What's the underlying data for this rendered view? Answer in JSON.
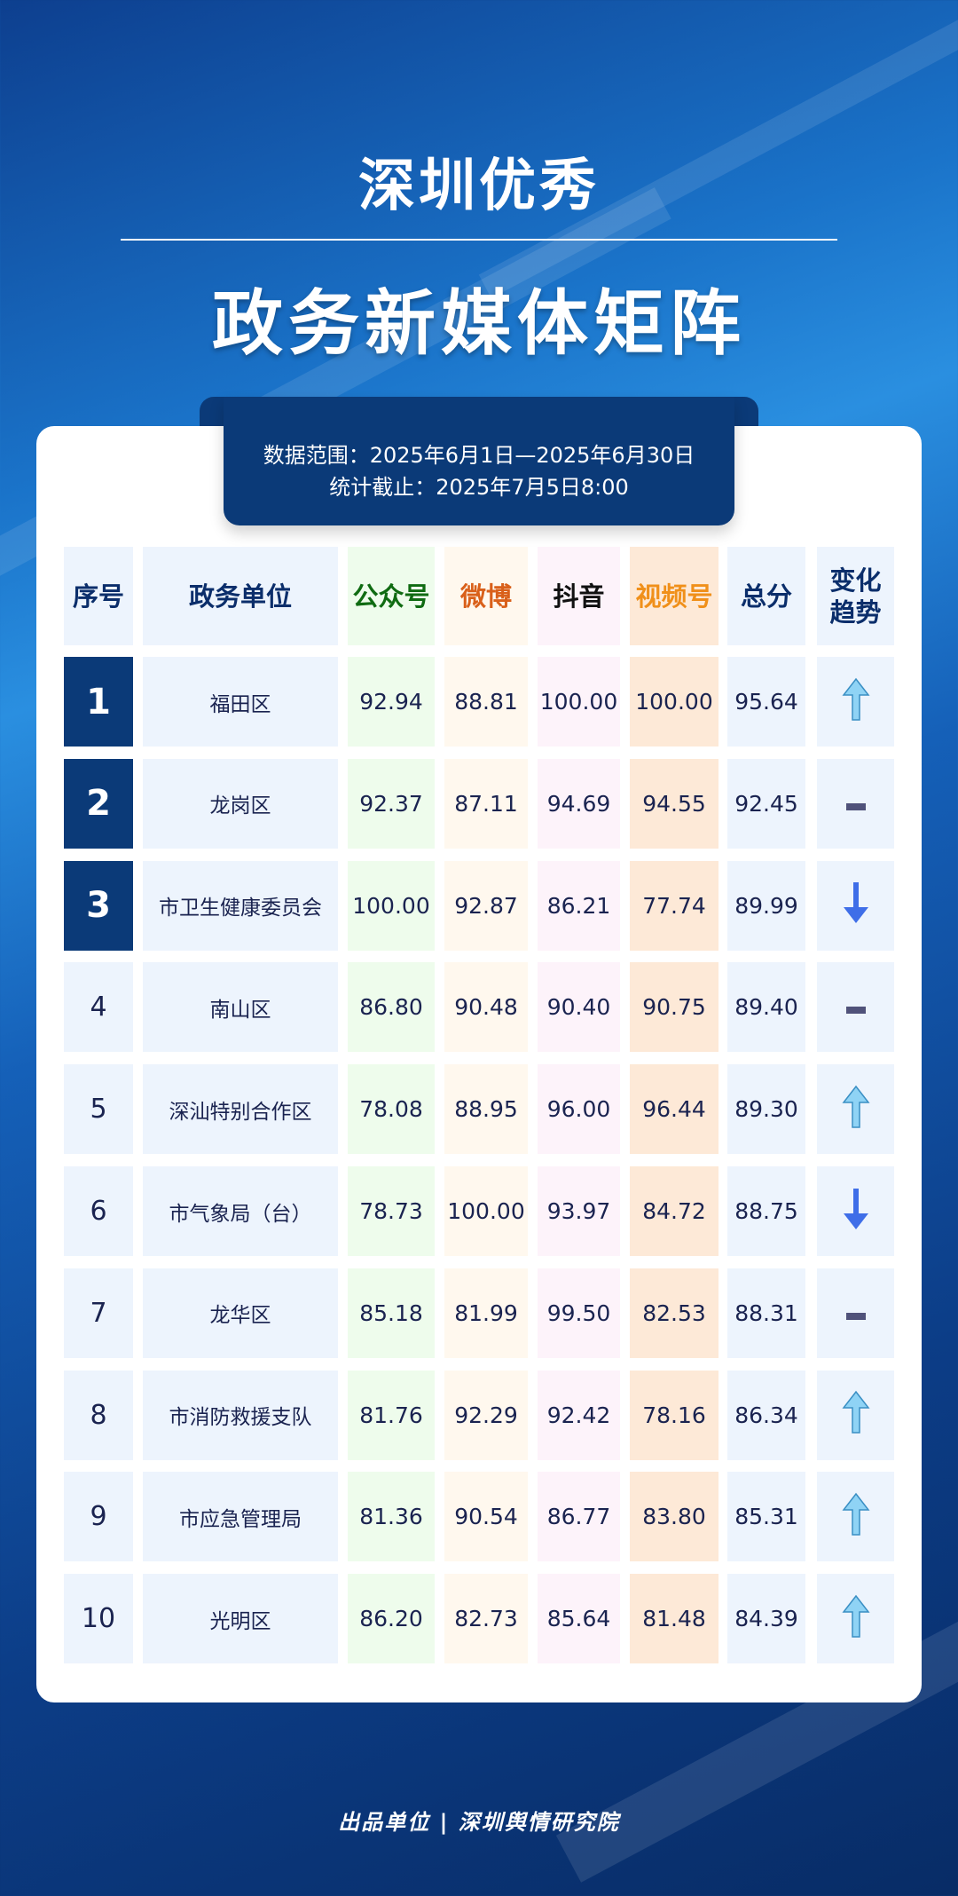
{
  "header": {
    "title_line1": "深圳优秀",
    "title_line2": "政务新媒体矩阵"
  },
  "info": {
    "range": "数据范围：2025年6月1日—2025年6月30日",
    "cutoff": "统计截止：2025年7月5日8:00"
  },
  "table": {
    "columns": [
      "序号",
      "政务单位",
      "公众号",
      "微博",
      "抖音",
      "视频号",
      "总分",
      "变化趋势"
    ],
    "column_colors": {
      "公众号": "#0f6b12",
      "微博": "#d9601a",
      "抖音": "#111111",
      "视频号": "#f0901a",
      "default": "#0b2e6b"
    },
    "rows": [
      {
        "rank": "1",
        "unit": "福田区",
        "gzh": "92.94",
        "wb": "88.81",
        "dy": "100.00",
        "sph": "100.00",
        "total": "95.64",
        "trend": "up"
      },
      {
        "rank": "2",
        "unit": "龙岗区",
        "gzh": "92.37",
        "wb": "87.11",
        "dy": "94.69",
        "sph": "94.55",
        "total": "92.45",
        "trend": "flat"
      },
      {
        "rank": "3",
        "unit": "市卫生健康委员会",
        "gzh": "100.00",
        "wb": "92.87",
        "dy": "86.21",
        "sph": "77.74",
        "total": "89.99",
        "trend": "down"
      },
      {
        "rank": "4",
        "unit": "南山区",
        "gzh": "86.80",
        "wb": "90.48",
        "dy": "90.40",
        "sph": "90.75",
        "total": "89.40",
        "trend": "flat"
      },
      {
        "rank": "5",
        "unit": "深汕特别合作区",
        "gzh": "78.08",
        "wb": "88.95",
        "dy": "96.00",
        "sph": "96.44",
        "total": "89.30",
        "trend": "up"
      },
      {
        "rank": "6",
        "unit": "市气象局（台）",
        "gzh": "78.73",
        "wb": "100.00",
        "dy": "93.97",
        "sph": "84.72",
        "total": "88.75",
        "trend": "down"
      },
      {
        "rank": "7",
        "unit": "龙华区",
        "gzh": "85.18",
        "wb": "81.99",
        "dy": "99.50",
        "sph": "82.53",
        "total": "88.31",
        "trend": "flat"
      },
      {
        "rank": "8",
        "unit": "市消防救援支队",
        "gzh": "81.76",
        "wb": "92.29",
        "dy": "92.42",
        "sph": "78.16",
        "total": "86.34",
        "trend": "up"
      },
      {
        "rank": "9",
        "unit": "市应急管理局",
        "gzh": "81.36",
        "wb": "90.54",
        "dy": "86.77",
        "sph": "83.80",
        "total": "85.31",
        "trend": "up"
      },
      {
        "rank": "10",
        "unit": "光明区",
        "gzh": "86.20",
        "wb": "82.73",
        "dy": "85.64",
        "sph": "81.48",
        "total": "84.39",
        "trend": "up"
      }
    ]
  },
  "footer": {
    "text": "出品单位 | 深圳舆情研究院"
  }
}
